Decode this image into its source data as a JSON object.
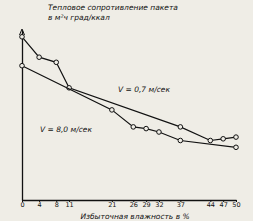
{
  "chart_data": {
    "type": "line",
    "y_label": [
      "Тепловое сопротивление пакета",
      "в м²ч град/ккал"
    ],
    "x_label": "Избыточная влажность в %",
    "xlim": [
      0,
      50
    ],
    "xticks": [
      0,
      4,
      8,
      11,
      21,
      26,
      29,
      32,
      37,
      44,
      47,
      50
    ],
    "ylim": [
      0,
      100
    ],
    "yticks": [],
    "tick_labels": "x",
    "grid": false,
    "series": [
      {
        "name": "V = 0,7 м/сек",
        "color": "#111111",
        "marker": "circle",
        "line_style": "solid",
        "x": [
          0,
          4,
          8,
          11,
          37,
          44,
          47,
          50
        ],
        "values": [
          96,
          84,
          81,
          66,
          43,
          35,
          36,
          37
        ]
      },
      {
        "name": "V = 8,0 м/сек",
        "color": "#111111",
        "marker": "circle",
        "line_style": "solid",
        "x": [
          0,
          21,
          26,
          29,
          32,
          37,
          50
        ],
        "values": [
          79,
          53,
          43,
          42,
          40,
          35,
          31
        ]
      }
    ]
  }
}
